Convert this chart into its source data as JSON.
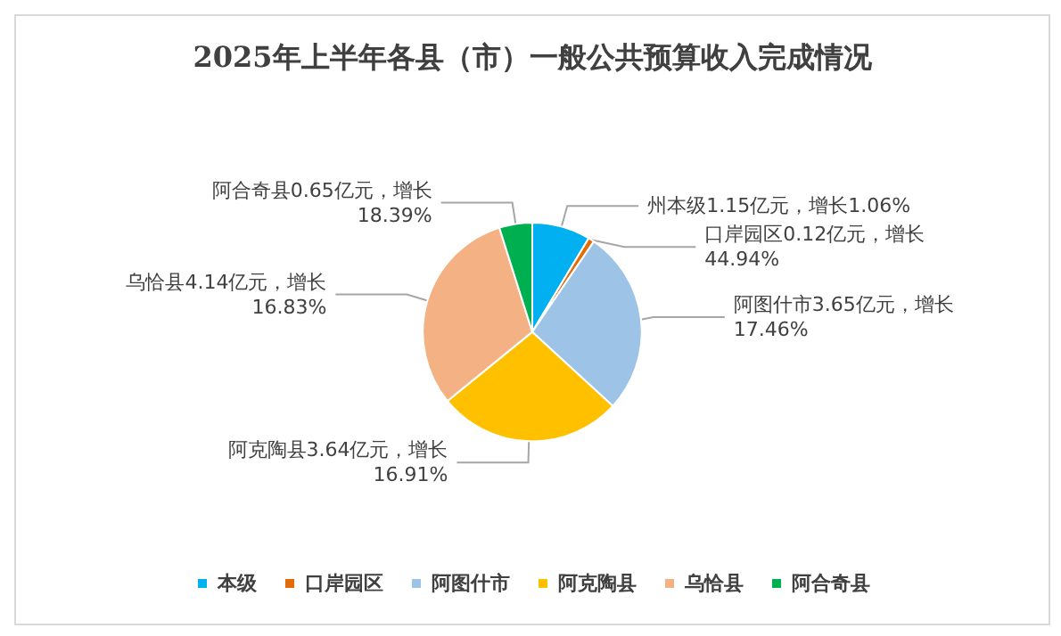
{
  "chart_data": {
    "type": "pie",
    "title": "2025年上半年各县（市）一般公共预算收入完成情况",
    "categories": [
      "本级",
      "口岸园区",
      "阿图什市",
      "阿克陶县",
      "乌恰县",
      "阿合奇县"
    ],
    "values": [
      1.15,
      0.12,
      3.65,
      3.64,
      4.14,
      0.65
    ],
    "colors": [
      "#00b0f0",
      "#e36c09",
      "#9dc3e6",
      "#ffc000",
      "#f4b183",
      "#00b050"
    ],
    "value_labels": [
      "州本级1.15亿元，增长1.06%",
      "口岸园区0.12亿元，增长44.94%",
      "阿图什市3.65亿元，增长17.46%",
      "阿克陶县3.64亿元，增长16.91%",
      "乌恰县4.14亿元，增长16.83%",
      "阿合奇县0.65亿元，增长18.39%"
    ],
    "legend": "bottom"
  }
}
